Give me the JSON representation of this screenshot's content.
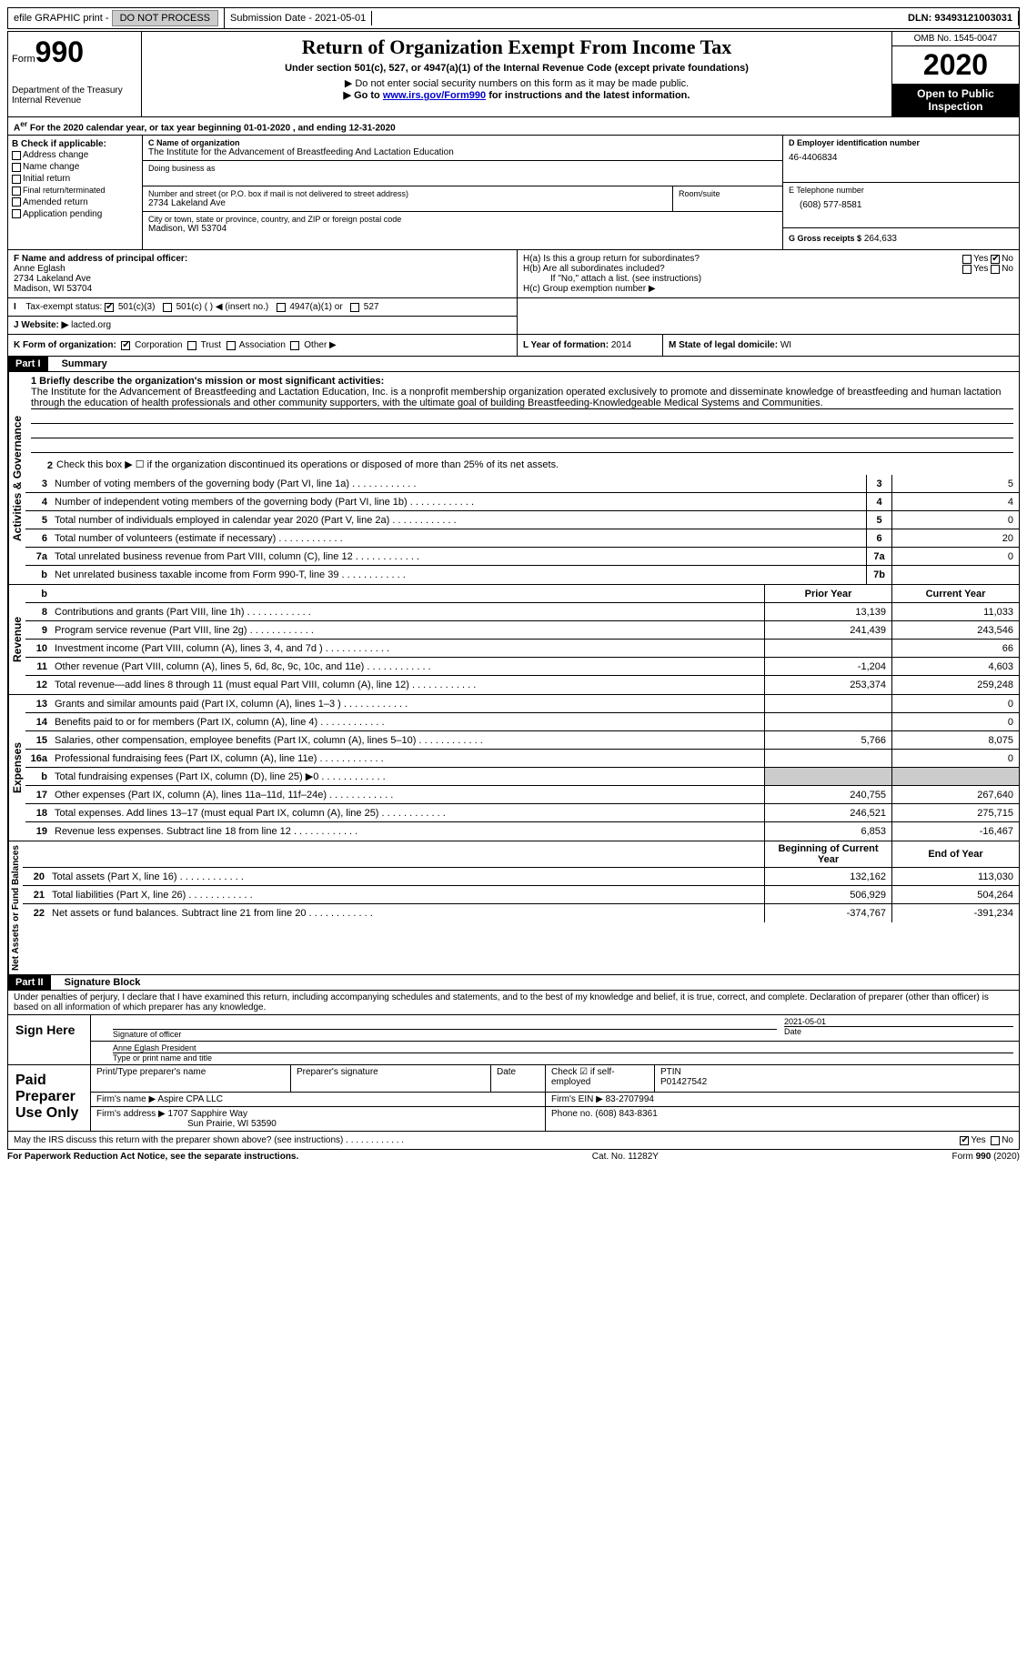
{
  "topbar": {
    "efile_label": "efile GRAPHIC print - ",
    "submission_label": "Submission Date - 2021-05-01",
    "dln_label": "DLN: 93493121003031"
  },
  "header": {
    "form_word": "Form",
    "form_num": "990",
    "dept": "Department of the Treasury\nInternal Revenue",
    "title": "Return of Organization Exempt From Income Tax",
    "subtitle": "Under section 501(c), 527, or 4947(a)(1) of the Internal Revenue Code (except private foundations)",
    "note1": "▶ Do not enter social security numbers on this form as it may be made public.",
    "note2_pre": "▶ Go to ",
    "note2_link": "www.irs.gov/Form990",
    "note2_post": " for instructions and the latest information.",
    "omb": "OMB No. 1545-0047",
    "year": "2020",
    "inspection": "Open to Public Inspection"
  },
  "line_a": "For the 2020 calendar year, or tax year beginning 01-01-2020   , and ending 12-31-2020",
  "box_b": {
    "label": "B Check if applicable:",
    "items": [
      "Address change",
      "Name change",
      "Initial return",
      "Final return/terminated",
      "Amended return",
      "Application pending"
    ]
  },
  "box_c": {
    "label": "C Name of organization",
    "org_name": "The Institute for the Advancement of Breastfeeding And Lactation Education",
    "dba_label": "Doing business as",
    "addr_label": "Number and street (or P.O. box if mail is not delivered to street address)",
    "addr": "2734 Lakeland Ave",
    "room_label": "Room/suite",
    "city_label": "City or town, state or province, country, and ZIP or foreign postal code",
    "city": "Madison, WI  53704"
  },
  "box_d": {
    "label": "D Employer identification number",
    "val": "46-4406834"
  },
  "box_e": {
    "label": "E Telephone number",
    "val": "(608) 577-8581"
  },
  "box_g": {
    "label": "G Gross receipts $",
    "val": "264,633"
  },
  "box_f": {
    "label": "F Name and address of principal officer:",
    "name": "Anne Eglash",
    "addr": "2734 Lakeland Ave\nMadison, WI  53704"
  },
  "box_h": {
    "ha": "H(a)  Is this a group return for subordinates?",
    "hb": "H(b)  Are all subordinates included?",
    "hb_note": "If \"No,\" attach a list. (see instructions)",
    "hc": "H(c)  Group exemption number ▶"
  },
  "tax_exempt": {
    "label": "Tax-exempt status:",
    "opts": [
      "501(c)(3)",
      "501(c) (  ) ◀ (insert no.)",
      "4947(a)(1) or",
      "527"
    ]
  },
  "box_j": {
    "label": "J   Website: ▶",
    "val": "lacted.org"
  },
  "box_k": {
    "label": "K Form of organization:",
    "opts": [
      "Corporation",
      "Trust",
      "Association",
      "Other ▶"
    ]
  },
  "box_l": {
    "label": "L Year of formation:",
    "val": "2014"
  },
  "box_m": {
    "label": "M State of legal domicile:",
    "val": "WI"
  },
  "part1": {
    "title": "Part I",
    "subtitle": "Summary",
    "q1_label": "1   Briefly describe the organization's mission or most significant activities:",
    "q1_text": "The Institute for the Advancement of Breastfeeding and Lactation Education, Inc. is a nonprofit membership organization operated exclusively to promote and disseminate knowledge of breastfeeding and human lactation through the education of health professionals and other community supporters, with the ultimate goal of building Breastfeeding-Knowledgeable Medical Systems and Communities.",
    "q2": "Check this box ▶ ☐  if the organization discontinued its operations or disposed of more than 25% of its net assets.",
    "sections": {
      "governance": "Activities & Governance",
      "revenue": "Revenue",
      "expenses": "Expenses",
      "netassets": "Net Assets or Fund Balances"
    },
    "lines_gov": [
      {
        "n": "3",
        "t": "Number of voting members of the governing body (Part VI, line 1a)",
        "box": "3",
        "v": "5"
      },
      {
        "n": "4",
        "t": "Number of independent voting members of the governing body (Part VI, line 1b)",
        "box": "4",
        "v": "4"
      },
      {
        "n": "5",
        "t": "Total number of individuals employed in calendar year 2020 (Part V, line 2a)",
        "box": "5",
        "v": "0"
      },
      {
        "n": "6",
        "t": "Total number of volunteers (estimate if necessary)",
        "box": "6",
        "v": "20"
      },
      {
        "n": "7a",
        "t": "Total unrelated business revenue from Part VIII, column (C), line 12",
        "box": "7a",
        "v": "0"
      },
      {
        "n": "b",
        "t": "Net unrelated business taxable income from Form 990-T, line 39",
        "box": "7b",
        "v": ""
      }
    ],
    "col_hdr_prior": "Prior Year",
    "col_hdr_current": "Current Year",
    "lines_rev": [
      {
        "n": "8",
        "t": "Contributions and grants (Part VIII, line 1h)",
        "p": "13,139",
        "c": "11,033"
      },
      {
        "n": "9",
        "t": "Program service revenue (Part VIII, line 2g)",
        "p": "241,439",
        "c": "243,546"
      },
      {
        "n": "10",
        "t": "Investment income (Part VIII, column (A), lines 3, 4, and 7d )",
        "p": "",
        "c": "66"
      },
      {
        "n": "11",
        "t": "Other revenue (Part VIII, column (A), lines 5, 6d, 8c, 9c, 10c, and 11e)",
        "p": "-1,204",
        "c": "4,603"
      },
      {
        "n": "12",
        "t": "Total revenue—add lines 8 through 11 (must equal Part VIII, column (A), line 12)",
        "p": "253,374",
        "c": "259,248"
      }
    ],
    "lines_exp": [
      {
        "n": "13",
        "t": "Grants and similar amounts paid (Part IX, column (A), lines 1–3 )",
        "p": "",
        "c": "0"
      },
      {
        "n": "14",
        "t": "Benefits paid to or for members (Part IX, column (A), line 4)",
        "p": "",
        "c": "0"
      },
      {
        "n": "15",
        "t": "Salaries, other compensation, employee benefits (Part IX, column (A), lines 5–10)",
        "p": "5,766",
        "c": "8,075"
      },
      {
        "n": "16a",
        "t": "Professional fundraising fees (Part IX, column (A), line 11e)",
        "p": "",
        "c": "0"
      },
      {
        "n": "b",
        "t": "Total fundraising expenses (Part IX, column (D), line 25) ▶0",
        "p": "GRAY",
        "c": "GRAY"
      },
      {
        "n": "17",
        "t": "Other expenses (Part IX, column (A), lines 11a–11d, 11f–24e)",
        "p": "240,755",
        "c": "267,640"
      },
      {
        "n": "18",
        "t": "Total expenses. Add lines 13–17 (must equal Part IX, column (A), line 25)",
        "p": "246,521",
        "c": "275,715"
      },
      {
        "n": "19",
        "t": "Revenue less expenses. Subtract line 18 from line 12",
        "p": "6,853",
        "c": "-16,467"
      }
    ],
    "col_hdr_begin": "Beginning of Current Year",
    "col_hdr_end": "End of Year",
    "lines_net": [
      {
        "n": "20",
        "t": "Total assets (Part X, line 16)",
        "p": "132,162",
        "c": "113,030"
      },
      {
        "n": "21",
        "t": "Total liabilities (Part X, line 26)",
        "p": "506,929",
        "c": "504,264"
      },
      {
        "n": "22",
        "t": "Net assets or fund balances. Subtract line 21 from line 20",
        "p": "-374,767",
        "c": "-391,234"
      }
    ]
  },
  "part2": {
    "title": "Part II",
    "subtitle": "Signature Block",
    "decl": "Under penalties of perjury, I declare that I have examined this return, including accompanying schedules and statements, and to the best of my knowledge and belief, it is true, correct, and complete. Declaration of preparer (other than officer) is based on all information of which preparer has any knowledge.",
    "sign_here": "Sign Here",
    "sig_officer": "Signature of officer",
    "sig_date": "2021-05-01",
    "date_label": "Date",
    "officer_name": "Anne Eglash President",
    "type_name": "Type or print name and title",
    "paid_prep": "Paid Preparer Use Only",
    "prep_name_label": "Print/Type preparer's name",
    "prep_sig_label": "Preparer's signature",
    "check_self": "Check ☑ if self-employed",
    "ptin_label": "PTIN",
    "ptin": "P01427542",
    "firm_name_label": "Firm's name    ▶",
    "firm_name": "Aspire CPA LLC",
    "firm_ein_label": "Firm's EIN ▶",
    "firm_ein": "83-2707994",
    "firm_addr_label": "Firm's address ▶",
    "firm_addr": "1707 Sapphire Way",
    "firm_city": "Sun Prairie, WI  53590",
    "phone_label": "Phone no.",
    "phone": "(608) 843-8361",
    "irs_discuss": "May the IRS discuss this return with the preparer shown above? (see instructions)"
  },
  "footer": {
    "left": "For Paperwork Reduction Act Notice, see the separate instructions.",
    "mid": "Cat. No. 11282Y",
    "right": "Form 990 (2020)"
  }
}
